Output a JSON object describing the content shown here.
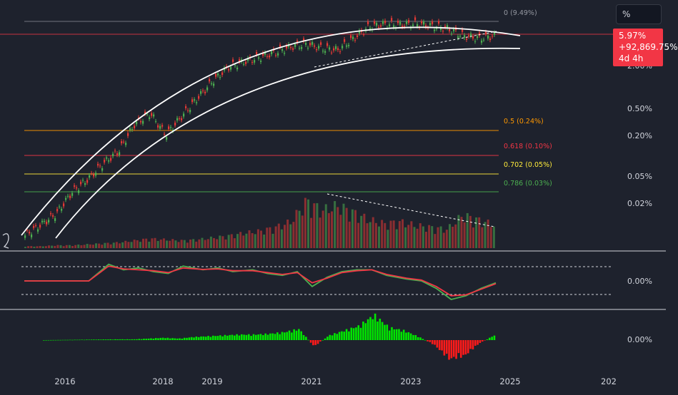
{
  "toolbar": {
    "scale_label": "%"
  },
  "price_badge": {
    "value": "5.97%",
    "change": "+92,869.75%",
    "countdown": "4d 4h"
  },
  "colors": {
    "background": "#1e222d",
    "up": "#26a69a",
    "down": "#ef5350",
    "candle_up": "#4caf50",
    "candle_down": "#e53935",
    "channel": "#ffffff",
    "fib_0": "#9598a1",
    "fib_05": "#ff9800",
    "fib_0618": "#f23645",
    "fib_0702": "#ffeb3b",
    "fib_0786": "#4caf50",
    "oscillator_fast": "#4caf50",
    "oscillator_slow": "#f23645",
    "histogram_up": "#00e600",
    "histogram_down": "#ff1a1a",
    "current_price_line": "#f23645"
  },
  "main_axis": {
    "labels": [
      "2.00%",
      "0.50%",
      "0.20%",
      "0.05%",
      "0.02%"
    ]
  },
  "fib_levels": [
    {
      "label": "0 (9.49%)",
      "color": "#9598a1"
    },
    {
      "label": "0.5 (0.24%)",
      "color": "#ff9800"
    },
    {
      "label": "0.618 (0.10%)",
      "color": "#f23645"
    },
    {
      "label": "0.702 (0.05%)",
      "color": "#ffeb3b"
    },
    {
      "label": "0.786 (0.03%)",
      "color": "#4caf50"
    }
  ],
  "oscillator": {
    "axis_label": "0.00%"
  },
  "histogram": {
    "axis_label": "0.00%"
  },
  "x_axis": {
    "labels": [
      "2016",
      "2018",
      "2019",
      "2021",
      "2023",
      "2025",
      "202"
    ]
  },
  "chart_data": {
    "type": "line",
    "description_series": "price",
    "y_scale": "log",
    "x": [
      2015.3,
      2015.6,
      2016.0,
      2016.3,
      2016.6,
      2017.0,
      2017.3,
      2017.6,
      2017.9,
      2018.2,
      2018.5,
      2018.9,
      2019.2,
      2019.5,
      2019.9,
      2020.2,
      2020.5,
      2020.8,
      2021.1,
      2021.4,
      2021.7,
      2022.0,
      2022.3,
      2022.6,
      2023.0,
      2023.3,
      2023.6,
      2023.9,
      2024.2,
      2024.5,
      2024.8
    ],
    "series": [
      {
        "values": [
          0.01,
          0.014,
          0.02,
          0.04,
          0.06,
          0.1,
          0.15,
          0.35,
          0.5,
          0.25,
          0.45,
          0.8,
          1.4,
          2.2,
          2.6,
          3.0,
          3.5,
          4.2,
          4.6,
          4.0,
          3.8,
          5.5,
          8.0,
          8.7,
          8.5,
          8.8,
          8.2,
          7.5,
          6.0,
          5.5,
          5.97
        ]
      }
    ],
    "volume": [
      2,
      2,
      3,
      3,
      4,
      5,
      6,
      8,
      10,
      9,
      8,
      9,
      11,
      13,
      16,
      18,
      22,
      28,
      50,
      40,
      45,
      38,
      30,
      26,
      28,
      24,
      22,
      20,
      35,
      30,
      25
    ],
    "oscillator_fast": [
      0,
      0,
      0,
      0,
      0,
      0.9,
      0.6,
      0.7,
      0.5,
      0.4,
      0.8,
      0.6,
      0.7,
      0.5,
      0.6,
      0.4,
      0.3,
      0.5,
      -0.3,
      0.2,
      0.5,
      0.6,
      0.6,
      0.3,
      0.1,
      0.0,
      -0.4,
      -1.0,
      -0.8,
      -0.4,
      -0.1
    ],
    "oscillator_slow": [
      0,
      0,
      0,
      0,
      0,
      0.8,
      0.65,
      0.6,
      0.55,
      0.45,
      0.7,
      0.62,
      0.65,
      0.55,
      0.55,
      0.45,
      0.35,
      0.45,
      -0.1,
      0.15,
      0.45,
      0.55,
      0.6,
      0.35,
      0.15,
      0.05,
      -0.3,
      -0.8,
      -0.75,
      -0.45,
      -0.15
    ],
    "histogram": [
      0,
      0.01,
      0.02,
      0.03,
      0.04,
      0.05,
      0.05,
      0.1,
      0.15,
      0.1,
      0.2,
      0.25,
      0.3,
      0.35,
      0.35,
      0.4,
      0.5,
      0.7,
      -0.4,
      0.3,
      0.6,
      0.9,
      1.6,
      0.8,
      0.6,
      0.2,
      -0.3,
      -1.2,
      -1.0,
      -0.2,
      0.3
    ],
    "grid": false,
    "legend": "none"
  }
}
